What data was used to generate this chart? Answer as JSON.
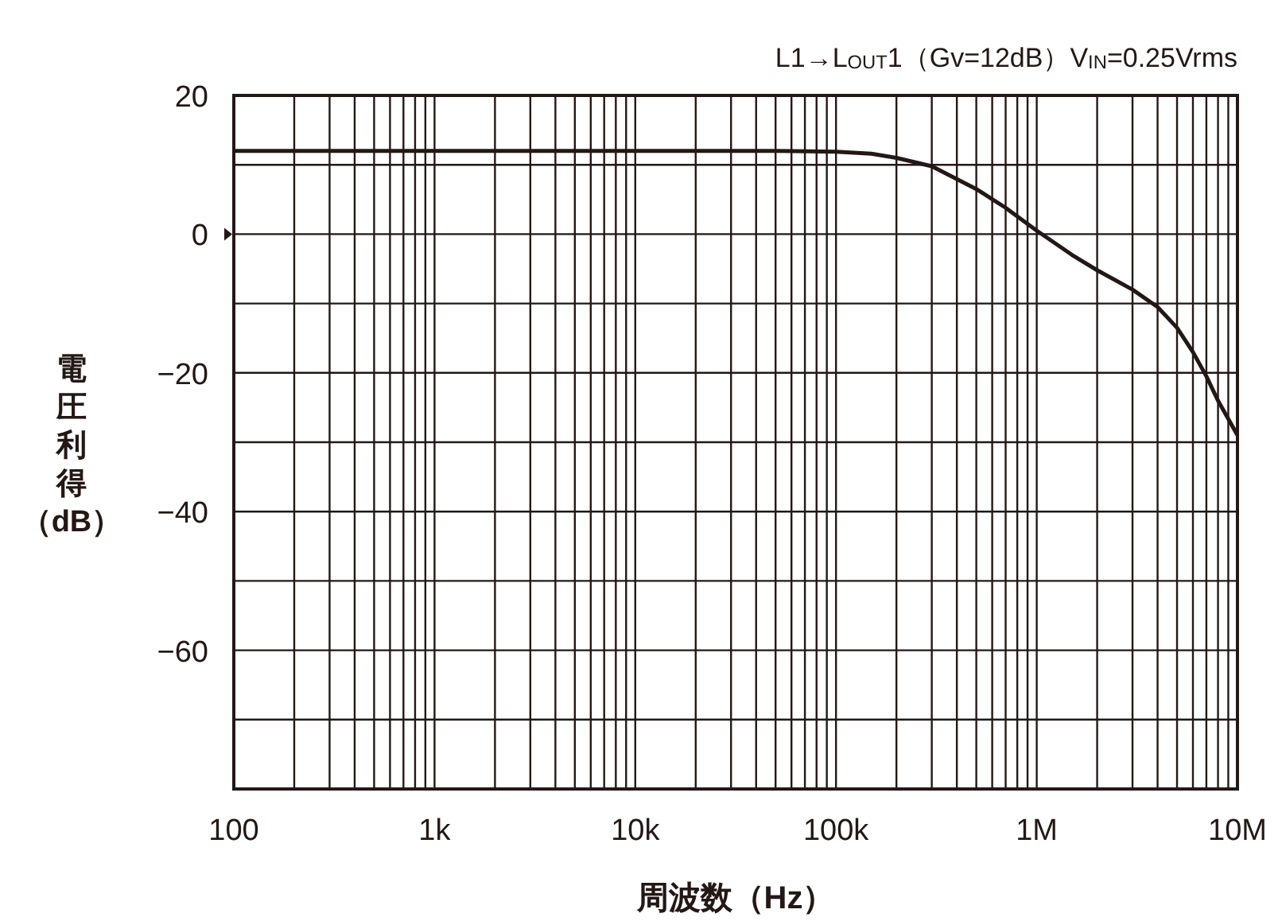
{
  "chart_data": {
    "type": "line",
    "title": "L1→L$_{OUT}$1（Gv=12dB）V$_{IN}$=0.25Vrms",
    "xlabel": "周波数（Hz）",
    "ylabel": "電圧利得（dB）",
    "log": "x",
    "grid": true,
    "xlim": [
      100,
      10000000
    ],
    "ylim": [
      -80,
      20
    ],
    "xticks": [
      {
        "value": 100,
        "label": "100"
      },
      {
        "value": 200,
        "label": null
      },
      {
        "value": 300,
        "label": null
      },
      {
        "value": 400,
        "label": null
      },
      {
        "value": 500,
        "label": null
      },
      {
        "value": 600,
        "label": null
      },
      {
        "value": 700,
        "label": null
      },
      {
        "value": 800,
        "label": null
      },
      {
        "value": 900,
        "label": null
      },
      {
        "value": 1000,
        "label": "1k"
      },
      {
        "value": 2000,
        "label": null
      },
      {
        "value": 3000,
        "label": null
      },
      {
        "value": 4000,
        "label": null
      },
      {
        "value": 5000,
        "label": null
      },
      {
        "value": 6000,
        "label": null
      },
      {
        "value": 7000,
        "label": null
      },
      {
        "value": 8000,
        "label": null
      },
      {
        "value": 9000,
        "label": null
      },
      {
        "value": 10000,
        "label": "10k"
      },
      {
        "value": 20000,
        "label": null
      },
      {
        "value": 30000,
        "label": null
      },
      {
        "value": 40000,
        "label": null
      },
      {
        "value": 50000,
        "label": null
      },
      {
        "value": 60000,
        "label": null
      },
      {
        "value": 70000,
        "label": null
      },
      {
        "value": 80000,
        "label": null
      },
      {
        "value": 90000,
        "label": null
      },
      {
        "value": 100000,
        "label": "100k"
      },
      {
        "value": 200000,
        "label": null
      },
      {
        "value": 300000,
        "label": null
      },
      {
        "value": 400000,
        "label": null
      },
      {
        "value": 500000,
        "label": null
      },
      {
        "value": 600000,
        "label": null
      },
      {
        "value": 700000,
        "label": null
      },
      {
        "value": 800000,
        "label": null
      },
      {
        "value": 900000,
        "label": null
      },
      {
        "value": 1000000,
        "label": "1M"
      },
      {
        "value": 2000000,
        "label": null
      },
      {
        "value": 3000000,
        "label": null
      },
      {
        "value": 4000000,
        "label": null
      },
      {
        "value": 5000000,
        "label": null
      },
      {
        "value": 6000000,
        "label": null
      },
      {
        "value": 7000000,
        "label": null
      },
      {
        "value": 8000000,
        "label": null
      },
      {
        "value": 9000000,
        "label": null
      },
      {
        "value": 10000000,
        "label": "10M"
      }
    ],
    "yticks": [
      {
        "value": -80,
        "label": null
      },
      {
        "value": -70,
        "label": null
      },
      {
        "value": -60,
        "label": "−60"
      },
      {
        "value": -50,
        "label": null
      },
      {
        "value": -40,
        "label": "−40"
      },
      {
        "value": -30,
        "label": null
      },
      {
        "value": -20,
        "label": "−20"
      },
      {
        "value": -10,
        "label": null
      },
      0,
      {
        "value": 10,
        "label": null
      },
      20
    ],
    "series": [
      {
        "color": "#231815",
        "x": [
          100,
          10000,
          50000,
          100000,
          150000,
          200000,
          300000,
          500000,
          700000,
          1000000,
          1500000,
          2000000,
          3000000,
          4000000,
          5000000,
          6000000,
          7000000,
          8000000,
          10000000
        ],
        "values": [
          12,
          12,
          12,
          11.9,
          11.6,
          11,
          9.8,
          6.5,
          3.8,
          0.5,
          -3,
          -5.2,
          -8,
          -10.5,
          -13.5,
          -17,
          -20.5,
          -24,
          -29
        ]
      }
    ]
  }
}
